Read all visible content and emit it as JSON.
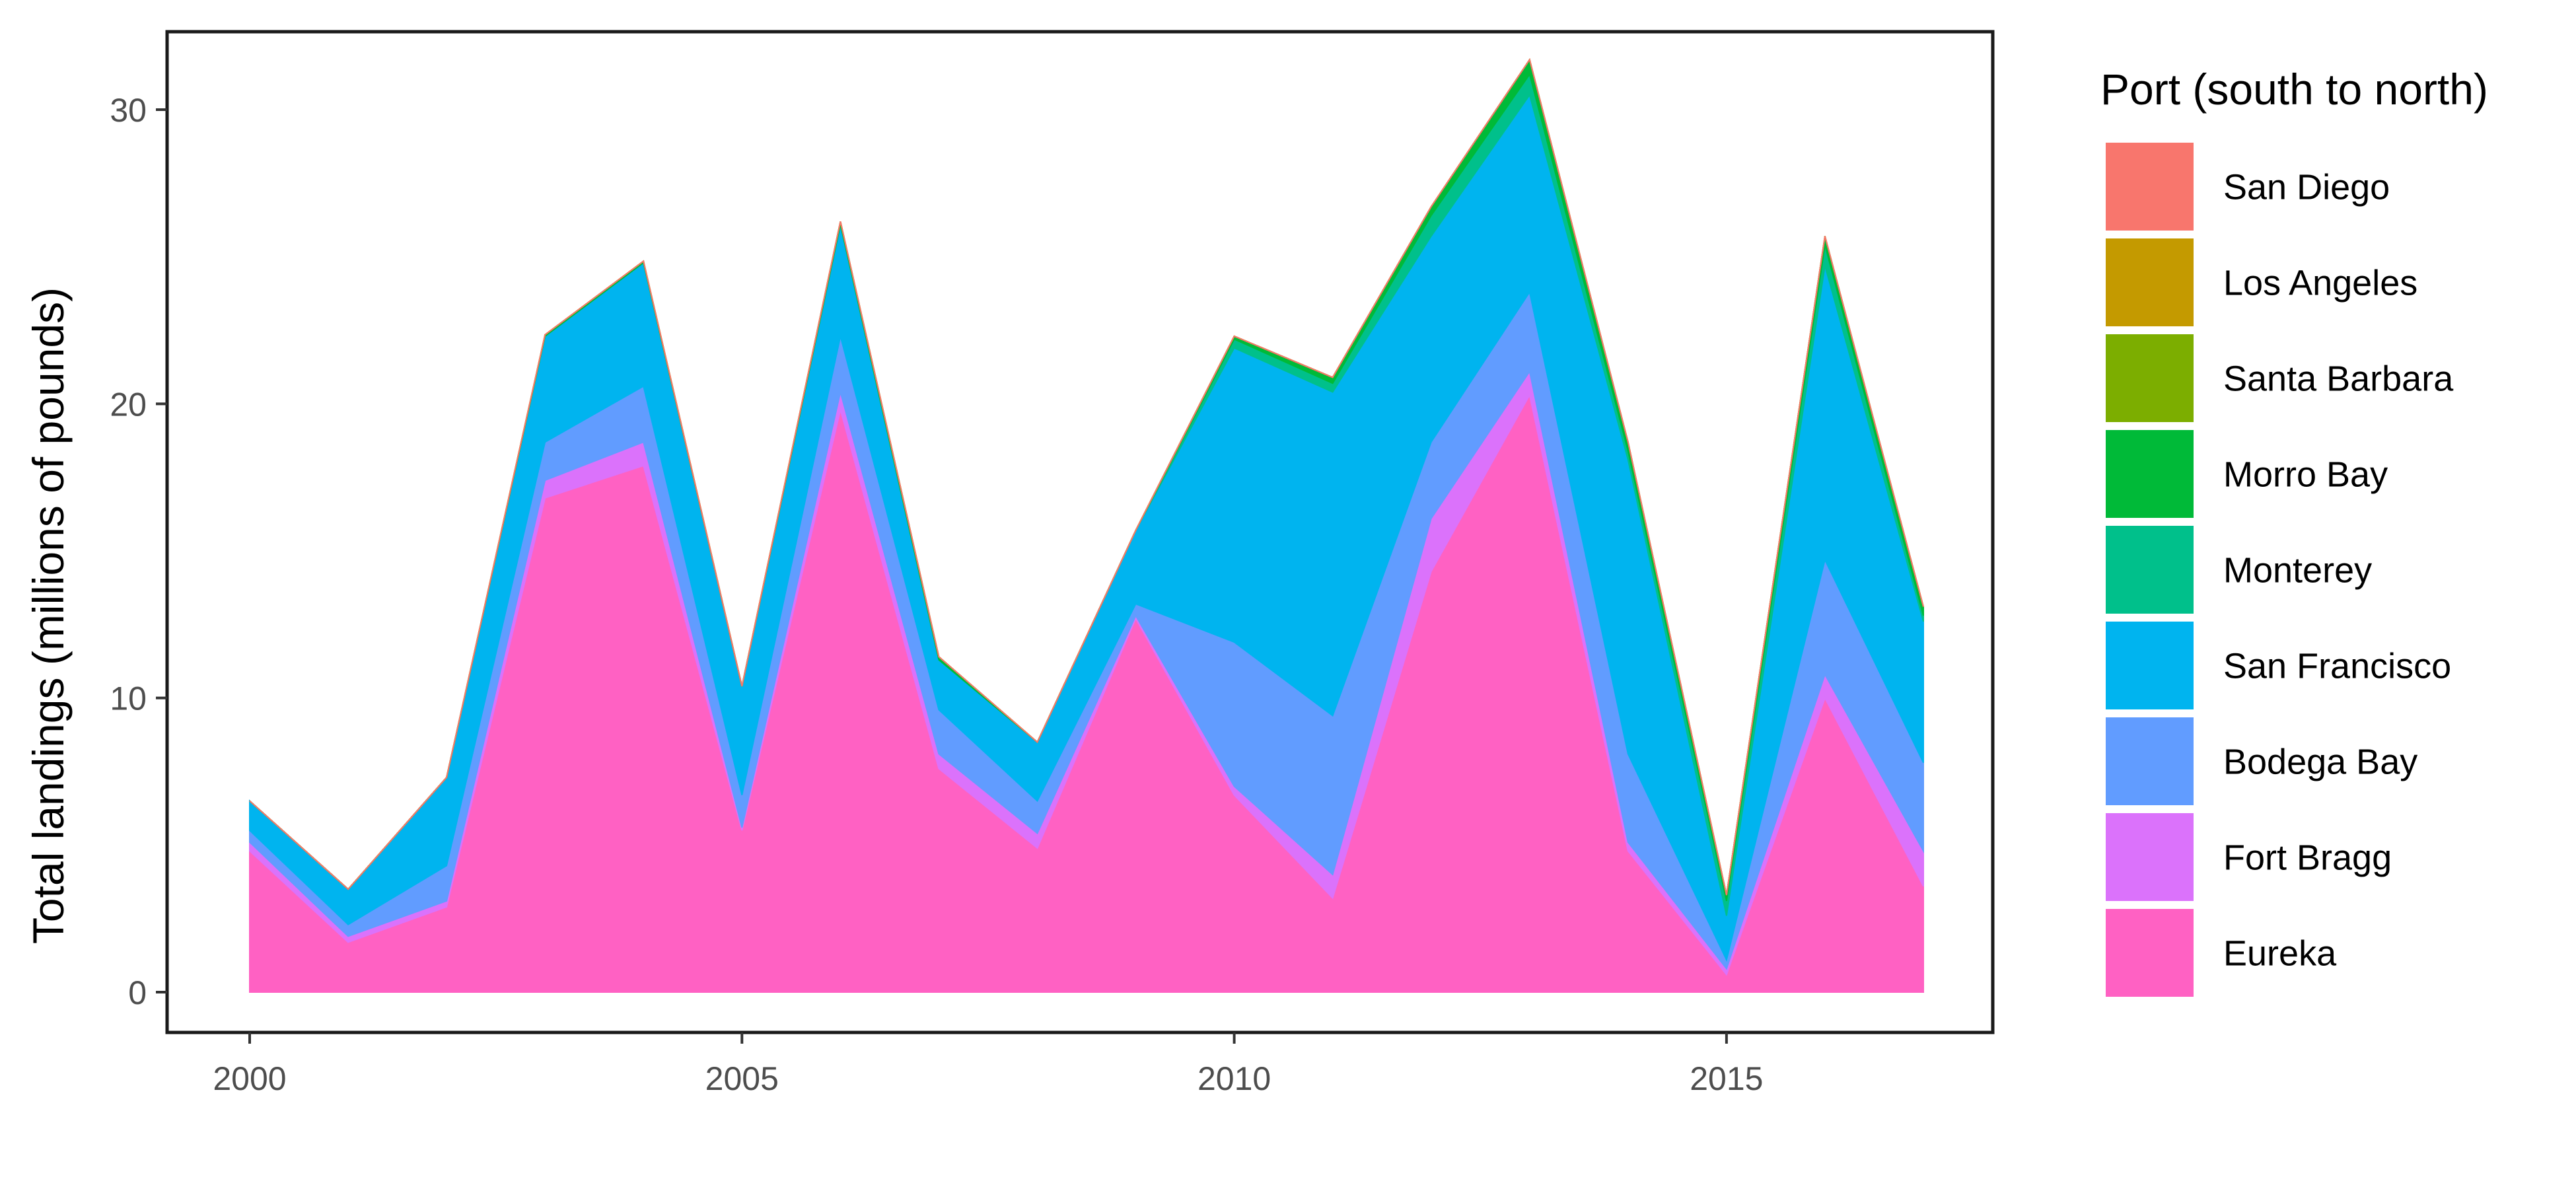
{
  "chart_data": {
    "type": "area",
    "stacked": true,
    "ylabel": "Total landings (millions of pounds)",
    "xlabel": "",
    "xlim": [
      2000,
      2017
    ],
    "ylim": [
      0,
      30
    ],
    "x_ticks": [
      2000,
      2005,
      2010,
      2015
    ],
    "y_ticks": [
      0,
      10,
      20,
      30
    ],
    "grid": false,
    "legend": {
      "title": "Port (south to north)",
      "position": "right"
    },
    "x": [
      2000,
      2001,
      2002,
      2003,
      2004,
      2005,
      2006,
      2007,
      2008,
      2009,
      2010,
      2011,
      2012,
      2013,
      2014,
      2015,
      2016,
      2017
    ],
    "series": [
      {
        "name": "San Diego",
        "color": "#F8766D",
        "values": [
          0,
          0,
          0,
          0,
          0,
          0,
          0,
          0,
          0,
          0,
          0,
          0,
          0,
          0,
          0,
          0,
          0,
          0
        ]
      },
      {
        "name": "Los Angeles",
        "color": "#C49A00",
        "values": [
          0,
          0,
          0,
          0,
          0,
          0,
          0,
          0,
          0,
          0,
          0,
          0,
          0,
          0,
          0,
          0,
          0,
          0
        ]
      },
      {
        "name": "Santa Barbara",
        "color": "#7CAE00",
        "values": [
          0,
          0,
          0,
          0,
          0,
          0,
          0,
          0,
          0,
          0,
          0,
          0,
          0,
          0,
          0,
          0,
          0,
          0
        ]
      },
      {
        "name": "Morro Bay",
        "color": "#00BA38",
        "values": [
          0,
          0,
          0,
          0.05,
          0.05,
          0,
          0.1,
          0.1,
          0,
          0,
          0.1,
          0.2,
          0.3,
          0.5,
          0.3,
          0.2,
          0.3,
          0.3
        ]
      },
      {
        "name": "Monterey",
        "color": "#00C08B",
        "values": [
          0,
          0,
          0,
          0,
          0,
          0,
          0,
          0,
          0,
          0,
          0.3,
          0.3,
          0.7,
          0.7,
          0.3,
          0.5,
          0.7,
          0.2
        ]
      },
      {
        "name": "San Francisco",
        "color": "#00B4EF",
        "values": [
          1,
          1.2,
          3,
          3.6,
          4.2,
          3.7,
          3.8,
          1.7,
          2,
          2.5,
          10,
          11,
          7,
          6.7,
          10,
          1.5,
          10,
          4.8
        ]
      },
      {
        "name": "Bodega Bay",
        "color": "#619CFF",
        "values": [
          0.4,
          0.4,
          1.2,
          1.3,
          1.9,
          1.1,
          1.9,
          1.5,
          1.1,
          0.4,
          4.9,
          5.4,
          2.6,
          2.7,
          3,
          0.3,
          3.9,
          3
        ]
      },
      {
        "name": "Fort Bragg",
        "color": "#DB72FB",
        "values": [
          0.3,
          0.2,
          0.2,
          0.6,
          0.8,
          0.1,
          0.6,
          0.5,
          0.5,
          0.1,
          0.3,
          0.8,
          1.8,
          0.8,
          0.3,
          0.2,
          0.8,
          1.2
        ]
      },
      {
        "name": "Eureka",
        "color": "#FF61C3",
        "values": [
          4.8,
          1.7,
          2.9,
          16.8,
          17.9,
          5.5,
          19.8,
          7.6,
          4.9,
          12.7,
          6.7,
          3.2,
          14.3,
          20.3,
          4.8,
          0.6,
          10,
          3.6
        ]
      }
    ]
  }
}
